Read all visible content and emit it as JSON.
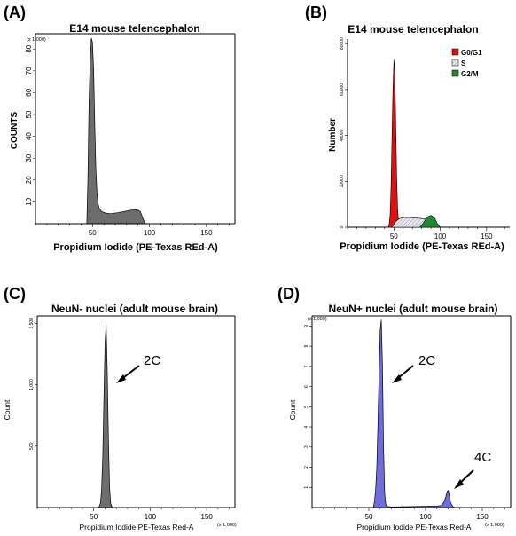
{
  "figure": {
    "panels": [
      {
        "id": "A",
        "letter": "(A)",
        "title": "E14 mouse telencephalon",
        "xlabel": "Propidium Iodide (PE-Texas REd-A)",
        "ylabel": "COUNTS",
        "y_unit": "(x 1,000)",
        "x_unit": "",
        "xticks": [
          "50",
          "100",
          "150"
        ],
        "yticks": [
          "10",
          "20",
          "30",
          "40",
          "50",
          "60",
          "70",
          "80"
        ]
      },
      {
        "id": "B",
        "letter": "(B)",
        "title": "E14 mouse telencephalon",
        "xlabel": "Propidium Iodide (PE-Texas REd-A)",
        "ylabel": "Number",
        "y_unit": "",
        "x_unit": "",
        "xticks": [
          "50",
          "100",
          "150"
        ],
        "yticks": [
          "0",
          "20000",
          "40000",
          "60000",
          "80000"
        ],
        "legend": [
          {
            "label": "G0/G1",
            "color": "#dd1111"
          },
          {
            "label": "S",
            "color": "#d8d8ee"
          },
          {
            "label": "G2/M",
            "color": "#228833"
          }
        ]
      },
      {
        "id": "C",
        "letter": "(C)",
        "title": "NeuN- nuclei (adult mouse brain)",
        "xlabel": "Propidium Iodide PE-Texas Red-A",
        "ylabel": "Count",
        "y_unit": "",
        "x_unit": "(x 1,000)",
        "xticks": [
          "50",
          "100",
          "150"
        ],
        "yticks": [
          "500",
          "1,000",
          "1,500"
        ],
        "annotations": [
          {
            "text": "2C"
          }
        ]
      },
      {
        "id": "D",
        "letter": "(D)",
        "title": "NeuN+ nuclei (adult mouse brain)",
        "xlabel": "Propidium Iodide PE-Texas Red-A",
        "ylabel": "Count",
        "y_unit": "(x 1,000)",
        "x_unit": "(x 1,000)",
        "xticks": [
          "50",
          "100",
          "150"
        ],
        "yticks": [
          "1",
          "2",
          "3",
          "4",
          "5",
          "6",
          "7",
          "8",
          "9"
        ],
        "annotations": [
          {
            "text": "2C"
          },
          {
            "text": "4C"
          }
        ]
      }
    ]
  },
  "chart_data": [
    {
      "type": "area",
      "title": "E14 mouse telencephalon",
      "xlabel": "Propidium Iodide (PE-Texas REd-A)",
      "ylabel": "COUNTS",
      "y_unit": "x 1,000",
      "xlim": [
        0,
        175
      ],
      "ylim": [
        0,
        87
      ],
      "color": "#6d6d6d",
      "x": [
        45,
        46,
        47,
        48,
        49,
        50,
        51,
        52,
        53,
        54,
        55,
        56,
        58,
        62,
        66,
        72,
        78,
        84,
        88,
        90,
        92,
        93,
        94,
        95,
        96,
        97
      ],
      "y": [
        0,
        20,
        55,
        75,
        85,
        83,
        70,
        45,
        25,
        14,
        9,
        7,
        5.5,
        4.8,
        4.6,
        5.0,
        5.6,
        6.2,
        6.4,
        6.2,
        5.5,
        4.2,
        2.8,
        1.5,
        0.5,
        0
      ]
    },
    {
      "type": "area",
      "title": "E14 mouse telencephalon",
      "xlabel": "Propidium Iodide (PE-Texas REd-A)",
      "ylabel": "Number",
      "xlim": [
        0,
        175
      ],
      "ylim": [
        0,
        82000
      ],
      "grid": false,
      "legend_position": "top-right",
      "series": [
        {
          "name": "G0/G1",
          "color": "#dd1111",
          "x": [
            44,
            45,
            46,
            47,
            48,
            49,
            50,
            51,
            52,
            53,
            54,
            55,
            56,
            57
          ],
          "y": [
            0,
            1500,
            6000,
            18000,
            40000,
            60000,
            73000,
            68000,
            45000,
            22000,
            8000,
            2500,
            800,
            0
          ]
        },
        {
          "name": "S",
          "color": "#d8d8ee",
          "x": [
            48,
            52,
            56,
            60,
            66,
            72,
            78,
            84,
            88,
            92,
            96
          ],
          "y": [
            0,
            2500,
            3800,
            4200,
            4300,
            4100,
            3900,
            3600,
            3000,
            1800,
            0
          ]
        },
        {
          "name": "G2/M",
          "color": "#228833",
          "x": [
            78,
            82,
            86,
            90,
            94,
            97,
            100
          ],
          "y": [
            0,
            2000,
            4500,
            5200,
            4000,
            1500,
            0
          ]
        }
      ]
    },
    {
      "type": "area",
      "title": "NeuN- nuclei (adult mouse brain)",
      "xlabel": "Propidium Iodide PE-Texas Red-A",
      "ylabel": "Count",
      "x_unit": "x 1,000",
      "xlim": [
        0,
        175
      ],
      "ylim": [
        0,
        1560
      ],
      "color": "#6d6d6d",
      "x": [
        54,
        55,
        56,
        57,
        58,
        59,
        60,
        61,
        62,
        63,
        64,
        65,
        66,
        67
      ],
      "y": [
        0,
        10,
        40,
        150,
        420,
        900,
        1350,
        1490,
        1100,
        550,
        160,
        35,
        8,
        0
      ],
      "annotations": [
        {
          "text": "2C",
          "x": 62
        }
      ]
    },
    {
      "type": "area",
      "title": "NeuN+ nuclei (adult mouse brain)",
      "xlabel": "Propidium Iodide PE-Texas Red-A",
      "ylabel": "Count",
      "x_unit": "x 1,000",
      "y_unit": "x 1,000",
      "xlim": [
        0,
        175
      ],
      "ylim": [
        0,
        9.5
      ],
      "color": "#6d6ddd",
      "x": [
        54,
        55,
        56,
        57,
        58,
        59,
        60,
        61,
        62,
        63,
        64,
        65,
        66,
        70,
        80,
        90,
        100,
        110,
        114,
        116,
        118,
        119,
        120,
        121,
        122,
        124,
        126
      ],
      "y": [
        0,
        0.3,
        0.9,
        2.0,
        4.0,
        6.5,
        8.8,
        9.3,
        7.0,
        3.0,
        0.7,
        0.15,
        0.05,
        0.03,
        0.04,
        0.05,
        0.06,
        0.07,
        0.1,
        0.25,
        0.55,
        0.8,
        0.85,
        0.6,
        0.25,
        0.05,
        0
      ],
      "annotations": [
        {
          "text": "2C",
          "x": 62
        },
        {
          "text": "4C",
          "x": 120
        }
      ]
    }
  ]
}
